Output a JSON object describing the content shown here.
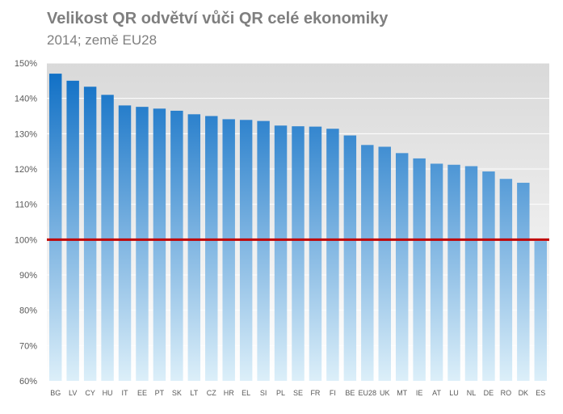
{
  "chart_data": {
    "type": "bar",
    "title": "Velikost QR odvětví vůči QR celé ekonomiky",
    "subtitle": "2014; země EU28",
    "xlabel": "",
    "ylabel": "",
    "ylim": [
      60,
      150
    ],
    "yticks": [
      60,
      70,
      80,
      90,
      100,
      110,
      120,
      130,
      140,
      150
    ],
    "ytick_labels": [
      "60%",
      "70%",
      "80%",
      "90%",
      "100%",
      "110%",
      "120%",
      "130%",
      "140%",
      "150%"
    ],
    "reference_line": 100,
    "grid": true,
    "legend": "none",
    "categories": [
      "BG",
      "LV",
      "CY",
      "HU",
      "IT",
      "EE",
      "PT",
      "SK",
      "LT",
      "CZ",
      "HR",
      "EL",
      "SI",
      "PL",
      "SE",
      "FR",
      "FI",
      "BE",
      "EU28",
      "UK",
      "MT",
      "IE",
      "AT",
      "LU",
      "NL",
      "DE",
      "RO",
      "DK",
      "ES"
    ],
    "values": [
      147.0,
      145.0,
      143.3,
      141.0,
      138.0,
      137.6,
      137.1,
      136.5,
      135.5,
      135.0,
      134.1,
      133.9,
      133.6,
      132.3,
      132.1,
      132.0,
      131.4,
      129.5,
      126.8,
      126.3,
      124.5,
      123.0,
      121.5,
      121.2,
      120.8,
      119.3,
      117.2,
      116.1,
      99.6
    ],
    "colors": {
      "bar_top": "#0a6cc4",
      "bar_bottom": "#dceff9",
      "reference_line": "#c00000",
      "plot_bg_top": "#d9d9d9",
      "plot_bg_bottom": "#ffffff",
      "grid": "#ffffff"
    }
  }
}
